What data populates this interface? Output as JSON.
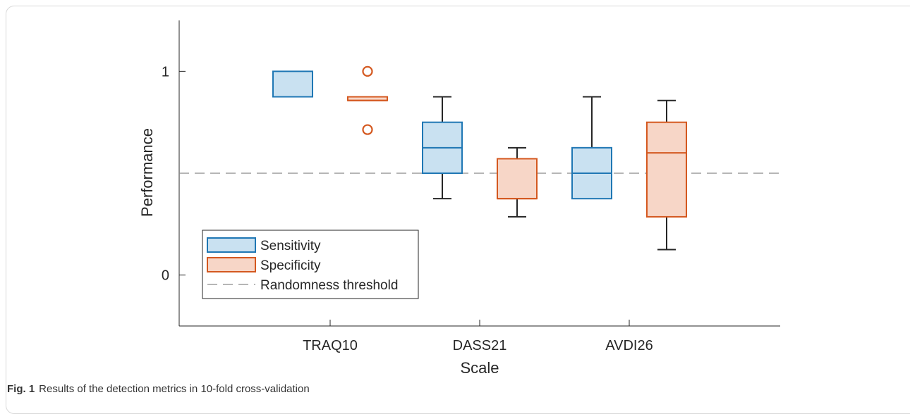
{
  "caption": {
    "label": "Fig. 1",
    "text": "Results of the detection metrics in 10-fold cross-validation"
  },
  "chart_data": {
    "type": "box",
    "title": "",
    "xlabel": "Scale",
    "ylabel": "Performance",
    "ylim": [
      -0.25,
      1.25
    ],
    "yticks": [
      0,
      1
    ],
    "categories": [
      "TRAQ10",
      "DASS21",
      "AVDI26"
    ],
    "threshold": {
      "name": "Randomness threshold",
      "value": 0.5
    },
    "legend_position": "bottom-left",
    "colors": {
      "sensitivity": "#1f77b4",
      "specificity": "#d4581f",
      "threshold": "#8a8a8a"
    },
    "series": [
      {
        "name": "Sensitivity",
        "boxes": [
          {
            "category": "TRAQ10",
            "min": 0.875,
            "q1": 0.875,
            "median": 0.875,
            "q3": 1.0,
            "max": 1.0,
            "outliers": []
          },
          {
            "category": "DASS21",
            "min": 0.375,
            "q1": 0.5,
            "median": 0.625,
            "q3": 0.75,
            "max": 0.875,
            "outliers": []
          },
          {
            "category": "AVDI26",
            "min": 0.375,
            "q1": 0.375,
            "median": 0.5,
            "q3": 0.625,
            "max": 0.875,
            "outliers": []
          }
        ]
      },
      {
        "name": "Specificity",
        "boxes": [
          {
            "category": "TRAQ10",
            "min": 0.857,
            "q1": 0.857,
            "median": 0.857,
            "q3": 0.875,
            "max": 0.875,
            "outliers": [
              1.0,
              0.714
            ]
          },
          {
            "category": "DASS21",
            "min": 0.286,
            "q1": 0.375,
            "median": 0.375,
            "q3": 0.571,
            "max": 0.625,
            "outliers": []
          },
          {
            "category": "AVDI26",
            "min": 0.125,
            "q1": 0.286,
            "median": 0.6,
            "q3": 0.75,
            "max": 0.857,
            "outliers": []
          }
        ]
      }
    ]
  }
}
